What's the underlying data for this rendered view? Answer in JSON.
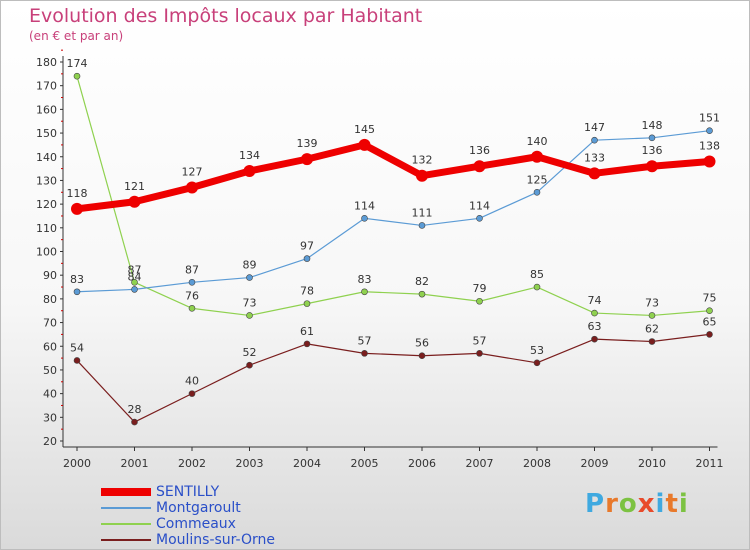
{
  "title": "Evolution des Impôts locaux par Habitant",
  "subtitle": "(en € et par an)",
  "brand": {
    "letters": [
      "P",
      "r",
      "o",
      "x",
      "i",
      "t",
      "i"
    ],
    "colors": [
      "#3fa9e0",
      "#e8792b",
      "#7cc242",
      "#e84a2b",
      "#3fa9e0",
      "#e8792b",
      "#7cc242"
    ]
  },
  "chart_data": {
    "type": "line",
    "title": "Evolution des Impôts locaux par Habitant",
    "subtitle": "(en € et par an)",
    "categories": [
      "2000",
      "2001",
      "2002",
      "2003",
      "2004",
      "2005",
      "2006",
      "2007",
      "2008",
      "2009",
      "2010",
      "2011"
    ],
    "ylim": [
      20,
      180
    ],
    "yticks": [
      20,
      30,
      40,
      50,
      60,
      70,
      80,
      90,
      100,
      110,
      120,
      130,
      140,
      150,
      160,
      170,
      180
    ],
    "grid": false,
    "legend_position": "bottom-left",
    "series": [
      {
        "name": "SENTILLY",
        "color": "#ee0000",
        "values": [
          118,
          121,
          127,
          134,
          139,
          145,
          132,
          136,
          140,
          133,
          136,
          138
        ]
      },
      {
        "name": "Montgaroult",
        "color": "#5b9bd5",
        "values": [
          83,
          84,
          87,
          89,
          97,
          114,
          111,
          114,
          125,
          147,
          148,
          151
        ]
      },
      {
        "name": "Commeaux",
        "color": "#8fd14f",
        "values": [
          174,
          87,
          76,
          73,
          78,
          83,
          82,
          79,
          85,
          74,
          73,
          75
        ]
      },
      {
        "name": "Moulins-sur-Orne",
        "color": "#7a1e1e",
        "values": [
          54,
          28,
          40,
          52,
          61,
          57,
          56,
          57,
          53,
          63,
          62,
          65
        ]
      }
    ]
  }
}
